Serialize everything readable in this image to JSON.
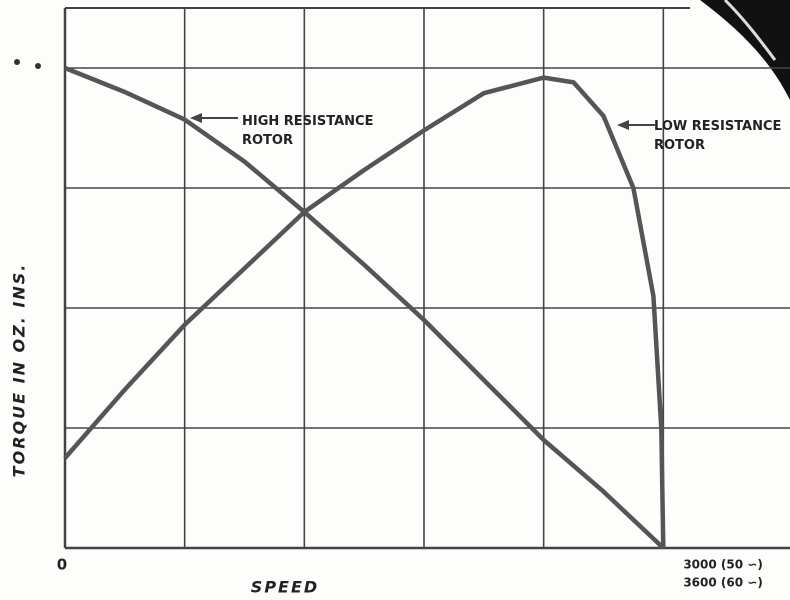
{
  "chart_data": {
    "type": "line",
    "xlabel": "SPEED",
    "ylabel": "TORQUE IN OZ. INS.",
    "xlim": [
      0,
      3600
    ],
    "ylim": [
      0,
      4.5
    ],
    "xticks": [
      0,
      {
        "value": 3000,
        "label": "3000 (50 ∽)"
      }
    ],
    "xticks_alt": [
      {
        "value": 3000,
        "label": "3600 (60 ∽)"
      }
    ],
    "xgrid": [
      0,
      600,
      1200,
      1800,
      2400,
      3000
    ],
    "ygrid": [
      0,
      1,
      2,
      3,
      4
    ],
    "grid": true,
    "series": [
      {
        "name": "HIGH RESISTANCE ROTOR",
        "color": "#555555",
        "x": [
          0,
          300,
          600,
          900,
          1200,
          1500,
          1800,
          2100,
          2400,
          2700,
          3000
        ],
        "values": [
          4.0,
          3.8,
          3.57,
          3.22,
          2.8,
          2.36,
          1.9,
          1.4,
          0.9,
          0.47,
          0
        ]
      },
      {
        "name": "LOW RESISTANCE ROTOR",
        "color": "#555555",
        "x": [
          0,
          300,
          600,
          900,
          1200,
          1500,
          1800,
          2100,
          2400,
          2550,
          2700,
          2850,
          2950,
          2990,
          3000
        ],
        "values": [
          0.75,
          1.32,
          1.86,
          2.33,
          2.8,
          3.15,
          3.48,
          3.79,
          3.92,
          3.88,
          3.6,
          3.0,
          2.1,
          1.0,
          0
        ]
      }
    ]
  }
}
